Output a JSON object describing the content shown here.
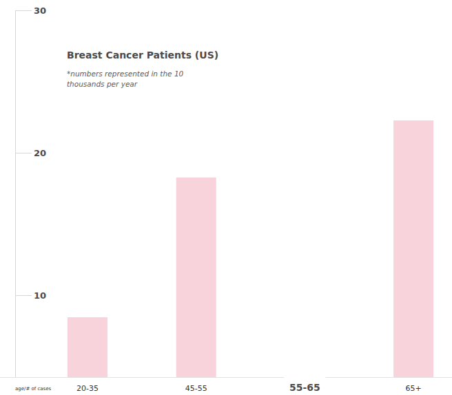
{
  "chart_data": {
    "type": "bar",
    "title": "Breast Cancer Patients (US)",
    "subtitle": "*numbers represented in the 10 thousands per year",
    "x_label": "age/# of cases",
    "categories": [
      "20-35",
      "45-55",
      "55-65",
      "65+"
    ],
    "values": [
      8.45,
      18.26,
      null,
      22.27
    ],
    "color": "#f8d3dc",
    "ylim": [
      4.25,
      30
    ],
    "yticks": [
      10,
      20,
      30
    ],
    "grid": false
  }
}
